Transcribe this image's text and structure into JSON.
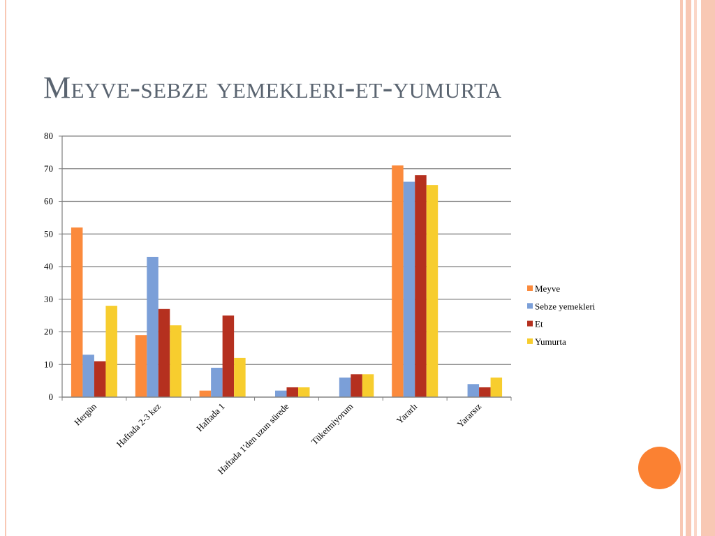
{
  "slide": {
    "title": "Meyve-sebze yemekleri-et-yumurta"
  },
  "chart_data": {
    "type": "bar",
    "categories": [
      "Hergün",
      "Haftada 2-3 kez",
      "Haftada 1",
      "Haftada 1'den uzun sürede",
      "Tüketmiyorum",
      "Yararlı",
      "Yararsız"
    ],
    "series": [
      {
        "name": "Meyve",
        "color": "#fb8a3c",
        "values": [
          52,
          19,
          2,
          0,
          0,
          71,
          0
        ]
      },
      {
        "name": "Sebze yemekleri",
        "color": "#7b9fd8",
        "values": [
          13,
          43,
          9,
          2,
          6,
          66,
          4
        ]
      },
      {
        "name": "Et",
        "color": "#b5301f",
        "values": [
          11,
          27,
          25,
          3,
          7,
          68,
          3
        ]
      },
      {
        "name": "Yumurta",
        "color": "#f7cd2e",
        "values": [
          28,
          22,
          12,
          3,
          7,
          65,
          6
        ]
      }
    ],
    "yticks": [
      0,
      10,
      20,
      30,
      40,
      50,
      60,
      70,
      80
    ],
    "ylim": [
      0,
      80
    ],
    "grid": true,
    "legend_position": "right"
  },
  "colors": {
    "title": "#5a6470",
    "accent": "#fb8132",
    "stripes": "#f8c8b4"
  }
}
